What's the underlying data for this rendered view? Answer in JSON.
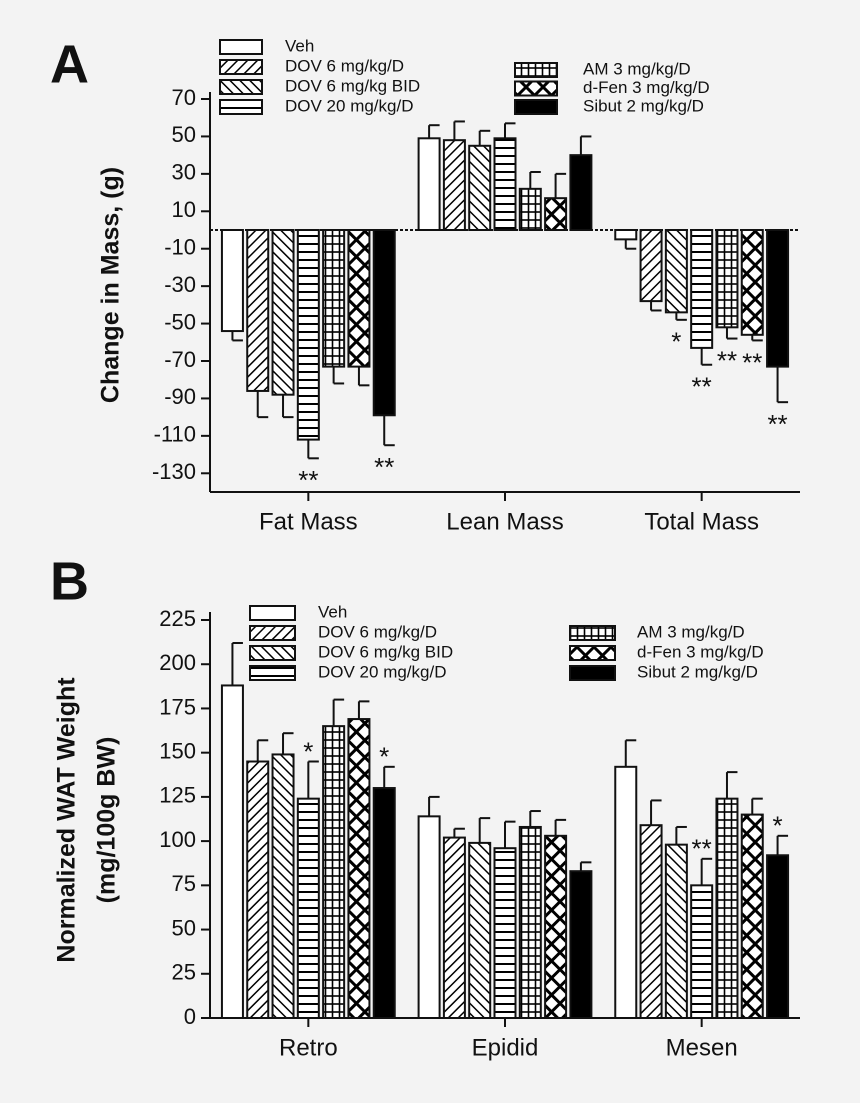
{
  "chart_data": [
    {
      "type": "bar",
      "panel_label": "A",
      "y_label": "Change in Mass, (g)",
      "categories": [
        "Fat Mass",
        "Lean Mass",
        "Total Mass"
      ],
      "ylim": [
        -140,
        70
      ],
      "yticks": [
        70,
        50,
        30,
        10,
        -10,
        -30,
        -50,
        -70,
        -90,
        -110,
        -130
      ],
      "zero_line": "dashed",
      "series": [
        {
          "name": "Veh",
          "pattern": "none",
          "values": [
            -54,
            49,
            -5
          ],
          "errors": [
            5,
            7,
            5
          ],
          "annotations": [
            null,
            null,
            null
          ]
        },
        {
          "name": "DOV 6 mg/kg/D",
          "pattern": "diagonal",
          "values": [
            -86,
            48,
            -38
          ],
          "errors": [
            14,
            10,
            5
          ],
          "annotations": [
            null,
            null,
            null
          ]
        },
        {
          "name": "DOV 6 mg/kg BID",
          "pattern": "back-diagonal",
          "values": [
            -88,
            45,
            -44
          ],
          "errors": [
            12,
            8,
            4
          ],
          "annotations": [
            null,
            null,
            "*"
          ]
        },
        {
          "name": "DOV 20 mg/kg/D",
          "pattern": "horizontal",
          "values": [
            -112,
            49,
            -63
          ],
          "errors": [
            10,
            8,
            9
          ],
          "annotations": [
            "**",
            null,
            "**"
          ]
        },
        {
          "name": "AM 3 mg/kg/D",
          "pattern": "grid",
          "values": [
            -73,
            22,
            -52
          ],
          "errors": [
            9,
            9,
            6
          ],
          "annotations": [
            null,
            null,
            "**"
          ]
        },
        {
          "name": "d-Fen 3 mg/kg/D",
          "pattern": "cross",
          "values": [
            -73,
            17,
            -56
          ],
          "errors": [
            10,
            13,
            3
          ],
          "annotations": [
            null,
            null,
            "**"
          ]
        },
        {
          "name": "Sibut 2 mg/kg/D",
          "pattern": "solid",
          "values": [
            -99,
            40,
            -73
          ],
          "errors": [
            16,
            10,
            19
          ],
          "annotations": [
            "**",
            null,
            "**"
          ]
        }
      ]
    },
    {
      "type": "bar",
      "panel_label": "B",
      "y_label": [
        "Normalized WAT Weight",
        "(mg/100g BW)"
      ],
      "categories": [
        "Retro",
        "Epidid",
        "Mesen"
      ],
      "ylim": [
        0,
        225
      ],
      "yticks": [
        0,
        25,
        50,
        75,
        100,
        125,
        150,
        175,
        200,
        225
      ],
      "series": [
        {
          "name": "Veh",
          "pattern": "none",
          "values": [
            188,
            114,
            142
          ],
          "errors": [
            24,
            11,
            15
          ],
          "annotations": [
            null,
            null,
            null
          ]
        },
        {
          "name": "DOV 6 mg/kg/D",
          "pattern": "diagonal",
          "values": [
            145,
            102,
            109
          ],
          "errors": [
            12,
            5,
            14
          ],
          "annotations": [
            null,
            null,
            null
          ]
        },
        {
          "name": "DOV 6 mg/kg BID",
          "pattern": "back-diagonal",
          "values": [
            149,
            99,
            98
          ],
          "errors": [
            12,
            14,
            10
          ],
          "annotations": [
            null,
            null,
            null
          ]
        },
        {
          "name": "DOV 20 mg/kg/D",
          "pattern": "horizontal",
          "values": [
            124,
            96,
            75
          ],
          "errors": [
            21,
            15,
            15
          ],
          "annotations": [
            "*",
            null,
            "**"
          ]
        },
        {
          "name": "AM 3 mg/kg/D",
          "pattern": "grid",
          "values": [
            165,
            108,
            124
          ],
          "errors": [
            15,
            9,
            15
          ],
          "annotations": [
            null,
            null,
            null
          ]
        },
        {
          "name": "d-Fen 3 mg/kg/D",
          "pattern": "cross",
          "values": [
            169,
            103,
            115
          ],
          "errors": [
            10,
            9,
            9
          ],
          "annotations": [
            null,
            null,
            null
          ]
        },
        {
          "name": "Sibut 2 mg/kg/D",
          "pattern": "solid",
          "values": [
            130,
            83,
            92
          ],
          "errors": [
            12,
            5,
            11
          ],
          "annotations": [
            "*",
            null,
            "*"
          ]
        }
      ]
    }
  ]
}
